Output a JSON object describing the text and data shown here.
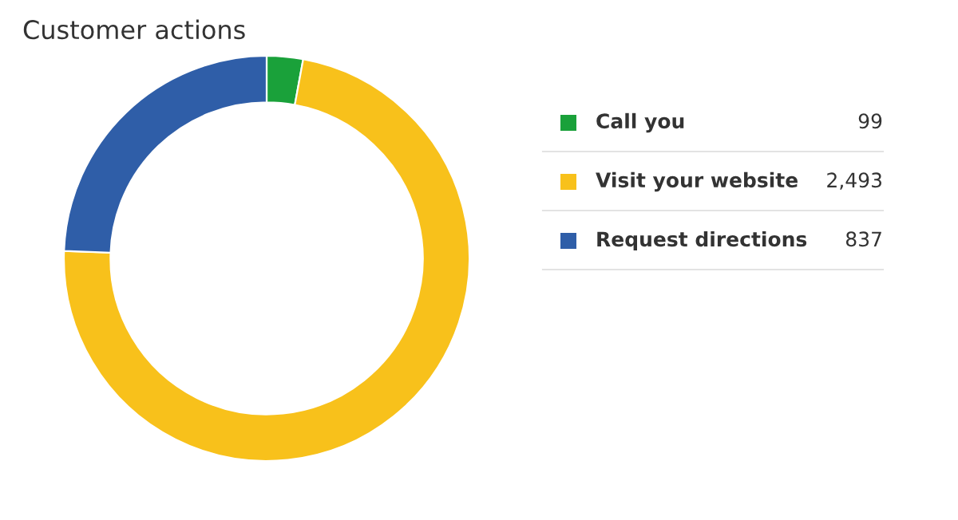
{
  "chart_data": {
    "type": "donut",
    "title": "Customer actions",
    "categories": [
      "Call you",
      "Visit your website",
      "Request directions"
    ],
    "values": [
      99,
      2493,
      837
    ],
    "value_labels": [
      "99",
      "2,493",
      "837"
    ],
    "colors": [
      "#1aa13a",
      "#f8c11b",
      "#2f5ea8"
    ],
    "legend": "right"
  }
}
